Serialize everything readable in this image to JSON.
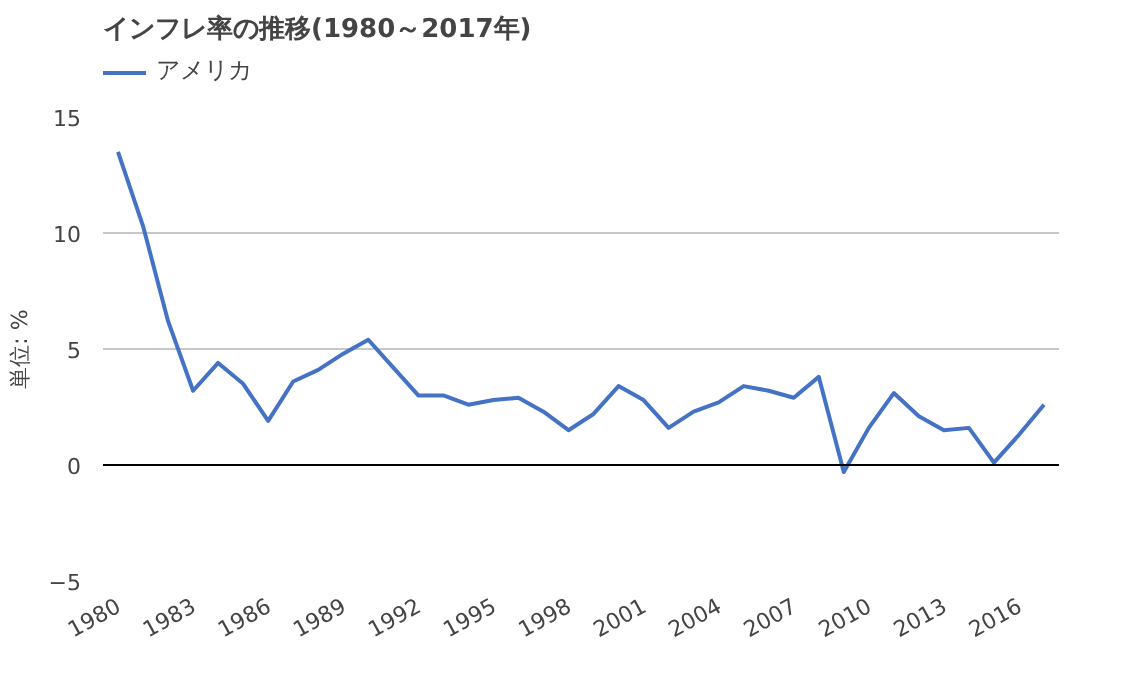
{
  "chart_data": {
    "type": "line",
    "title": "インフレ率の推移(1980～2017年)",
    "ylabel": "単位: %",
    "categories": [
      "1980",
      null,
      null,
      "1983",
      null,
      null,
      "1986",
      null,
      null,
      "1989",
      null,
      null,
      "1992",
      null,
      null,
      "1995",
      null,
      null,
      "1998",
      null,
      null,
      "2001",
      null,
      null,
      "2004",
      null,
      null,
      "2007",
      null,
      null,
      "2010",
      null,
      null,
      "2013",
      null,
      null,
      "2016",
      null
    ],
    "series": [
      {
        "name": "アメリカ",
        "color": "#4472c4",
        "values": [
          13.5,
          10.3,
          6.2,
          3.2,
          4.4,
          3.5,
          1.9,
          3.6,
          4.1,
          4.8,
          5.4,
          4.2,
          3.0,
          3.0,
          2.6,
          2.8,
          2.9,
          2.3,
          1.5,
          2.2,
          3.4,
          2.8,
          1.6,
          2.3,
          2.7,
          3.4,
          3.2,
          2.9,
          3.8,
          -0.3,
          1.6,
          3.1,
          2.1,
          1.5,
          1.6,
          0.1,
          1.3,
          2.6
        ]
      }
    ],
    "ylim": [
      -5,
      15
    ],
    "yticks": [
      -5,
      0,
      5,
      10,
      15
    ],
    "grid": "y",
    "legend": "top left",
    "marker": "none",
    "line_style": "solid",
    "ref_lines": [
      {
        "axis": "y",
        "value": 0,
        "color": "#000000"
      }
    ]
  }
}
